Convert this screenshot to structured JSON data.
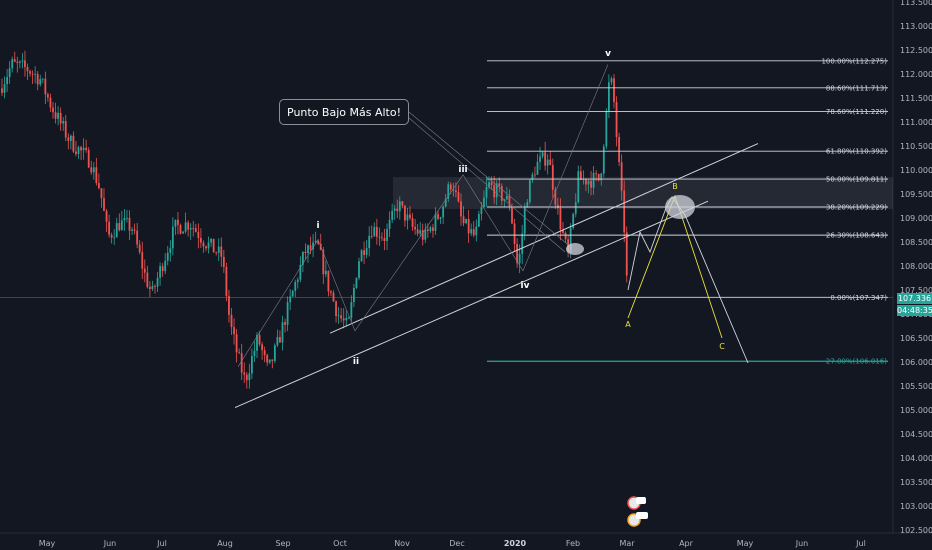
{
  "chart_data": {
    "type": "candlestick",
    "x_ticks": [
      "May",
      "Jun",
      "Jul",
      "Aug",
      "Sep",
      "Oct",
      "Nov",
      "Dec",
      "2020",
      "Feb",
      "Mar",
      "Apr",
      "May",
      "Jun",
      "Jul"
    ],
    "y_ticks": [
      "113.500",
      "113.000",
      "112.500",
      "112.000",
      "111.500",
      "111.000",
      "110.500",
      "110.000",
      "109.500",
      "109.000",
      "108.500",
      "108.000",
      "107.500",
      "107.000",
      "106.500",
      "106.000",
      "105.500",
      "105.000",
      "104.500",
      "104.000",
      "103.500",
      "103.000",
      "102.500"
    ],
    "y_range": [
      102.5,
      113.5
    ],
    "colors": {
      "up": "#26a69a",
      "down": "#ef5350",
      "background": "#131722",
      "fib_line": "#d1d4dc",
      "last_fib": "#26a69a",
      "projection": "#e8e337"
    },
    "last_price": "107.336",
    "countdown": "04:48:35",
    "fibonacci": [
      {
        "label": "100.00%(112.275)",
        "price": 112.275
      },
      {
        "label": "88.60%(111.713)",
        "price": 111.713
      },
      {
        "label": "78.60%(111.220)",
        "price": 111.22
      },
      {
        "label": "61.80%(110.392)",
        "price": 110.392
      },
      {
        "label": "50.00%(109.811)",
        "price": 109.811
      },
      {
        "label": "38.20%(109.229)",
        "price": 109.229
      },
      {
        "label": "26.30%(108.643)",
        "price": 108.643
      },
      {
        "label": "0.00%(107.347)",
        "price": 107.347
      },
      {
        "label": "27.00%(106.016)",
        "price": 106.016
      }
    ],
    "wave_labels": [
      "i",
      "ii",
      "iii",
      "iv",
      "v"
    ],
    "abc_labels": [
      "A",
      "B",
      "C"
    ],
    "annotation": "Punto Bajo Más Alto!"
  }
}
